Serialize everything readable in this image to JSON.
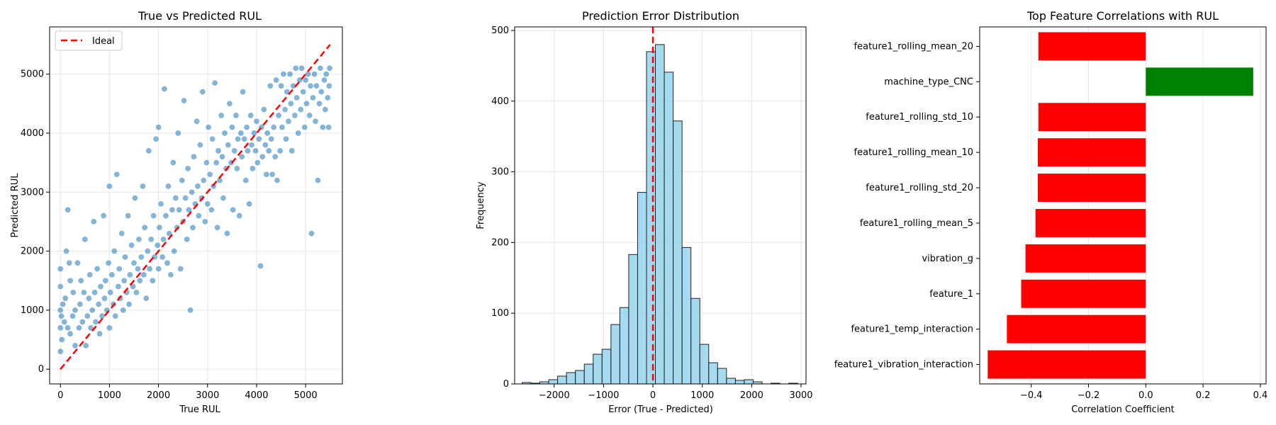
{
  "chart_data": [
    {
      "type": "scatter",
      "title": "True vs Predicted RUL",
      "xlabel": "True RUL",
      "ylabel": "Predicted RUL",
      "xlim": [
        -220,
        5750
      ],
      "ylim": [
        -250,
        5800
      ],
      "xticks": [
        0,
        1000,
        2000,
        3000,
        4000,
        5000
      ],
      "yticks": [
        0,
        1000,
        2000,
        3000,
        4000,
        5000
      ],
      "grid": true,
      "legend": {
        "position": "top-left",
        "entries": [
          "Ideal"
        ]
      },
      "ideal_line": {
        "x": [
          0,
          5500
        ],
        "y": [
          0,
          5500
        ],
        "color": "#ff0000",
        "style": "dashed"
      },
      "point_color": "#1f77b4",
      "points": [
        [
          0,
          300
        ],
        [
          0,
          700
        ],
        [
          0,
          1000
        ],
        [
          0,
          1400
        ],
        [
          0,
          1700
        ],
        [
          20,
          900
        ],
        [
          30,
          500
        ],
        [
          50,
          1100
        ],
        [
          80,
          800
        ],
        [
          100,
          1200
        ],
        [
          120,
          2000
        ],
        [
          150,
          700
        ],
        [
          150,
          2700
        ],
        [
          180,
          1800
        ],
        [
          200,
          1500
        ],
        [
          200,
          600
        ],
        [
          250,
          900
        ],
        [
          260,
          1300
        ],
        [
          300,
          400
        ],
        [
          300,
          1000
        ],
        [
          350,
          1800
        ],
        [
          380,
          700
        ],
        [
          400,
          1100
        ],
        [
          420,
          1500
        ],
        [
          450,
          800
        ],
        [
          480,
          1300
        ],
        [
          500,
          2200
        ],
        [
          520,
          400
        ],
        [
          550,
          900
        ],
        [
          580,
          1200
        ],
        [
          600,
          1600
        ],
        [
          620,
          700
        ],
        [
          650,
          1000
        ],
        [
          680,
          2500
        ],
        [
          700,
          1300
        ],
        [
          720,
          800
        ],
        [
          750,
          1700
        ],
        [
          780,
          1100
        ],
        [
          800,
          600
        ],
        [
          820,
          1400
        ],
        [
          850,
          900
        ],
        [
          880,
          2600
        ],
        [
          900,
          1200
        ],
        [
          920,
          1500
        ],
        [
          950,
          1000
        ],
        [
          980,
          1800
        ],
        [
          1000,
          700
        ],
        [
          1000,
          3100
        ],
        [
          1020,
          1300
        ],
        [
          1050,
          1600
        ],
        [
          1080,
          1100
        ],
        [
          1100,
          2000
        ],
        [
          1120,
          900
        ],
        [
          1150,
          3300
        ],
        [
          1180,
          1400
        ],
        [
          1200,
          1700
        ],
        [
          1220,
          1200
        ],
        [
          1250,
          2300
        ],
        [
          1280,
          1000
        ],
        [
          1300,
          1500
        ],
        [
          1320,
          1900
        ],
        [
          1350,
          1300
        ],
        [
          1380,
          2600
        ],
        [
          1400,
          1100
        ],
        [
          1420,
          1600
        ],
        [
          1450,
          2100
        ],
        [
          1480,
          1400
        ],
        [
          1500,
          1800
        ],
        [
          1520,
          2900
        ],
        [
          1550,
          1300
        ],
        [
          1580,
          1700
        ],
        [
          1600,
          2200
        ],
        [
          1620,
          1500
        ],
        [
          1650,
          1900
        ],
        [
          1680,
          3100
        ],
        [
          1700,
          1600
        ],
        [
          1720,
          2400
        ],
        [
          1750,
          1200
        ],
        [
          1780,
          2000
        ],
        [
          1800,
          3700
        ],
        [
          1820,
          1700
        ],
        [
          1850,
          2200
        ],
        [
          1880,
          1500
        ],
        [
          1900,
          2600
        ],
        [
          1920,
          1900
        ],
        [
          1950,
          3900
        ],
        [
          1980,
          2100
        ],
        [
          2000,
          1700
        ],
        [
          2000,
          4100
        ],
        [
          2020,
          2400
        ],
        [
          2050,
          2800
        ],
        [
          2080,
          1900
        ],
        [
          2100,
          2200
        ],
        [
          2120,
          4750
        ],
        [
          2150,
          2600
        ],
        [
          2180,
          1800
        ],
        [
          2200,
          3100
        ],
        [
          2220,
          2300
        ],
        [
          2250,
          1600
        ],
        [
          2280,
          2700
        ],
        [
          2300,
          3500
        ],
        [
          2320,
          2000
        ],
        [
          2350,
          2900
        ],
        [
          2380,
          2400
        ],
        [
          2400,
          4000
        ],
        [
          2420,
          2700
        ],
        [
          2450,
          1700
        ],
        [
          2480,
          3200
        ],
        [
          2500,
          2500
        ],
        [
          2520,
          4550
        ],
        [
          2550,
          2900
        ],
        [
          2580,
          2200
        ],
        [
          2600,
          3400
        ],
        [
          2620,
          2700
        ],
        [
          2650,
          1000
        ],
        [
          2680,
          3000
        ],
        [
          2700,
          2400
        ],
        [
          2720,
          3600
        ],
        [
          2750,
          2800
        ],
        [
          2780,
          4200
        ],
        [
          2800,
          3100
        ],
        [
          2820,
          2600
        ],
        [
          2850,
          3800
        ],
        [
          2880,
          2900
        ],
        [
          2900,
          4700
        ],
        [
          2920,
          3200
        ],
        [
          2950,
          2500
        ],
        [
          2980,
          3500
        ],
        [
          3000,
          2800
        ],
        [
          3020,
          4100
        ],
        [
          3050,
          3300
        ],
        [
          3080,
          2700
        ],
        [
          3100,
          3900
        ],
        [
          3120,
          3100
        ],
        [
          3150,
          4850
        ],
        [
          3180,
          3500
        ],
        [
          3200,
          2400
        ],
        [
          3220,
          3700
        ],
        [
          3250,
          3200
        ],
        [
          3280,
          4300
        ],
        [
          3300,
          3600
        ],
        [
          3320,
          2900
        ],
        [
          3350,
          4000
        ],
        [
          3380,
          3400
        ],
        [
          3400,
          2300
        ],
        [
          3420,
          3800
        ],
        [
          3450,
          4500
        ],
        [
          3480,
          3500
        ],
        [
          3500,
          4100
        ],
        [
          3520,
          2700
        ],
        [
          3550,
          3700
        ],
        [
          3580,
          4300
        ],
        [
          3600,
          3400
        ],
        [
          3620,
          3900
        ],
        [
          3650,
          2600
        ],
        [
          3680,
          4000
        ],
        [
          3700,
          3600
        ],
        [
          3720,
          4700
        ],
        [
          3750,
          3900
        ],
        [
          3780,
          3200
        ],
        [
          3800,
          4100
        ],
        [
          3820,
          3700
        ],
        [
          3850,
          2800
        ],
        [
          3880,
          4300
        ],
        [
          3900,
          3800
        ],
        [
          3920,
          3400
        ],
        [
          3950,
          4000
        ],
        [
          3980,
          3700
        ],
        [
          4000,
          4200
        ],
        [
          4020,
          3500
        ],
        [
          4050,
          3900
        ],
        [
          4080,
          1750
        ],
        [
          4100,
          4100
        ],
        [
          4120,
          3600
        ],
        [
          4150,
          4400
        ],
        [
          4180,
          3800
        ],
        [
          4200,
          3300
        ],
        [
          4220,
          4000
        ],
        [
          4250,
          3700
        ],
        [
          4280,
          4800
        ],
        [
          4300,
          3900
        ],
        [
          4320,
          3300
        ],
        [
          4350,
          4100
        ],
        [
          4380,
          3600
        ],
        [
          4400,
          4900
        ],
        [
          4420,
          3200
        ],
        [
          4450,
          4300
        ],
        [
          4480,
          3700
        ],
        [
          4500,
          4800
        ],
        [
          4520,
          4100
        ],
        [
          4550,
          5000
        ],
        [
          4580,
          4400
        ],
        [
          4600,
          3900
        ],
        [
          4620,
          4700
        ],
        [
          4650,
          4200
        ],
        [
          4680,
          5000
        ],
        [
          4700,
          4500
        ],
        [
          4720,
          3700
        ],
        [
          4750,
          4800
        ],
        [
          4780,
          4300
        ],
        [
          4800,
          5100
        ],
        [
          4820,
          4600
        ],
        [
          4850,
          4000
        ],
        [
          4880,
          4900
        ],
        [
          4900,
          4400
        ],
        [
          4920,
          5100
        ],
        [
          4950,
          4700
        ],
        [
          4980,
          4100
        ],
        [
          5000,
          4900
        ],
        [
          5020,
          4500
        ],
        [
          5050,
          5000
        ],
        [
          5080,
          4300
        ],
        [
          5100,
          4800
        ],
        [
          5120,
          2300
        ],
        [
          5150,
          4600
        ],
        [
          5180,
          5000
        ],
        [
          5200,
          4200
        ],
        [
          5220,
          4800
        ],
        [
          5250,
          3200
        ],
        [
          5280,
          4500
        ],
        [
          5300,
          5100
        ],
        [
          5320,
          4700
        ],
        [
          5350,
          4100
        ],
        [
          5380,
          4900
        ],
        [
          5400,
          4400
        ],
        [
          5420,
          5000
        ],
        [
          5450,
          4600
        ],
        [
          5470,
          4100
        ],
        [
          5480,
          4800
        ],
        [
          5490,
          5100
        ]
      ]
    },
    {
      "type": "bar",
      "subtype": "histogram",
      "title": "Prediction Error Distribution",
      "xlabel": "Error (True - Predicted)",
      "ylabel": "Frequency",
      "xlim": [
        -2800,
        3100
      ],
      "ylim": [
        0,
        505
      ],
      "xticks": [
        -2000,
        -1000,
        0,
        1000,
        2000,
        3000
      ],
      "yticks": [
        0,
        100,
        200,
        300,
        400,
        500
      ],
      "xtick_labels": [
        "−2000",
        "−1000",
        "0",
        "1000",
        "2000",
        "3000"
      ],
      "grid": true,
      "bar_color": "#87ceeb",
      "zero_line": {
        "x": 0,
        "color": "#ff0000",
        "style": "dashed"
      },
      "bin_start": -2650,
      "bin_width": 180,
      "counts": [
        2,
        1,
        3,
        6,
        11,
        16,
        19,
        28,
        42,
        49,
        84,
        108,
        183,
        271,
        470,
        480,
        441,
        372,
        193,
        121,
        56,
        30,
        22,
        8,
        5,
        6,
        3,
        0,
        1,
        0,
        1
      ]
    },
    {
      "type": "bar",
      "orientation": "horizontal",
      "title": "Top Feature Correlations with RUL",
      "xlabel": "Correlation Coefficient",
      "ylabel": "",
      "xlim": [
        -0.58,
        0.42
      ],
      "xticks": [
        -0.4,
        -0.2,
        0.0,
        0.2,
        0.4
      ],
      "xtick_labels": [
        "−0.4",
        "−0.2",
        "0.0",
        "0.2",
        "0.4"
      ],
      "grid": true,
      "positive_color": "#008000",
      "negative_color": "#ff0000",
      "categories": [
        "feature1_rolling_mean_20",
        "machine_type_CNC",
        "feature1_rolling_std_10",
        "feature1_rolling_mean_10",
        "feature1_rolling_std_20",
        "feature1_rolling_mean_5",
        "vibration_g",
        "feature_1",
        "feature1_temp_interaction",
        "feature1_vibration_interaction"
      ],
      "values": [
        -0.375,
        0.375,
        -0.375,
        -0.377,
        -0.377,
        -0.385,
        -0.42,
        -0.435,
        -0.485,
        -0.552
      ]
    }
  ]
}
